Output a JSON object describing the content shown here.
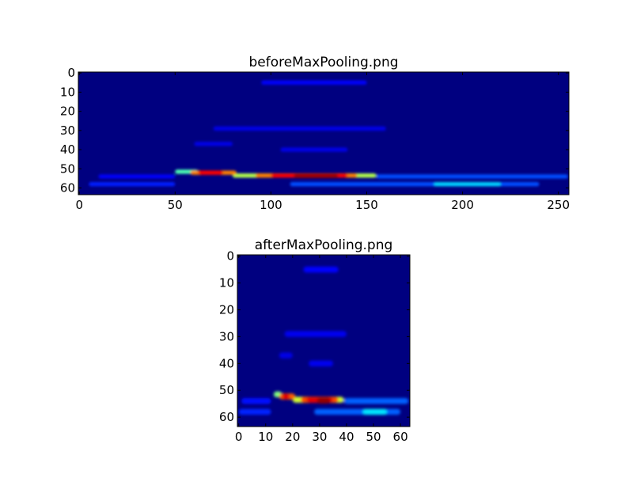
{
  "chart_data": [
    {
      "type": "heatmap",
      "title": "beforeMaxPooling.png",
      "colormap": "jet",
      "xlim": [
        -0.5,
        255.5
      ],
      "ylim": [
        63.5,
        -0.5
      ],
      "xticks": [
        0,
        50,
        100,
        150,
        200,
        250
      ],
      "yticks": [
        0,
        10,
        20,
        30,
        40,
        50,
        60
      ],
      "background_value": 0.0,
      "features": [
        {
          "x0": 10,
          "x1": 50,
          "y": 54,
          "value": 0.12
        },
        {
          "x0": 5,
          "x1": 50,
          "y": 58,
          "value": 0.15
        },
        {
          "x0": 95,
          "x1": 150,
          "y": 5,
          "value": 0.12
        },
        {
          "x0": 70,
          "x1": 160,
          "y": 29,
          "value": 0.1
        },
        {
          "x0": 60,
          "x1": 80,
          "y": 37,
          "value": 0.1
        },
        {
          "x0": 105,
          "x1": 140,
          "y": 40,
          "value": 0.1
        },
        {
          "x0": 155,
          "x1": 255,
          "y": 54,
          "value": 0.2
        },
        {
          "x0": 110,
          "x1": 240,
          "y": 58,
          "value": 0.2
        },
        {
          "x0": 185,
          "x1": 220,
          "y": 58,
          "value": 0.33
        },
        {
          "x0": 50,
          "x1": 62,
          "y": 51.5,
          "value": 0.45
        },
        {
          "x0": 80,
          "x1": 155,
          "y": 53.5,
          "value": 0.55
        },
        {
          "x0": 58,
          "x1": 82,
          "y": 52,
          "value": 0.75
        },
        {
          "x0": 92,
          "x1": 145,
          "y": 53.5,
          "value": 0.75
        },
        {
          "x0": 62,
          "x1": 75,
          "y": 52,
          "value": 0.88
        },
        {
          "x0": 100,
          "x1": 140,
          "y": 53.5,
          "value": 0.88
        },
        {
          "x0": 112,
          "x1": 135,
          "y": 53.7,
          "value": 0.97
        }
      ]
    },
    {
      "type": "heatmap",
      "title": "afterMaxPooling.png",
      "colormap": "jet",
      "xlim": [
        -0.5,
        63.5
      ],
      "ylim": [
        63.5,
        -0.5
      ],
      "xticks": [
        0,
        10,
        20,
        30,
        40,
        50,
        60
      ],
      "yticks": [
        0,
        10,
        20,
        30,
        40,
        50,
        60
      ],
      "background_value": 0.0,
      "features": [
        {
          "x0": 1,
          "x1": 12,
          "y": 54,
          "value": 0.14
        },
        {
          "x0": 0,
          "x1": 12,
          "y": 58,
          "value": 0.16
        },
        {
          "x0": 24,
          "x1": 37,
          "y": 5,
          "value": 0.13
        },
        {
          "x0": 17,
          "x1": 40,
          "y": 29,
          "value": 0.11
        },
        {
          "x0": 15,
          "x1": 20,
          "y": 37,
          "value": 0.1
        },
        {
          "x0": 26,
          "x1": 35,
          "y": 40,
          "value": 0.11
        },
        {
          "x0": 39,
          "x1": 63,
          "y": 54,
          "value": 0.22
        },
        {
          "x0": 28,
          "x1": 60,
          "y": 58,
          "value": 0.22
        },
        {
          "x0": 46,
          "x1": 55,
          "y": 58,
          "value": 0.35
        },
        {
          "x0": 13,
          "x1": 16,
          "y": 51.5,
          "value": 0.5
        },
        {
          "x0": 20,
          "x1": 39,
          "y": 53.5,
          "value": 0.58
        },
        {
          "x0": 15,
          "x1": 21,
          "y": 52.3,
          "value": 0.78
        },
        {
          "x0": 23,
          "x1": 37,
          "y": 53.5,
          "value": 0.8
        },
        {
          "x0": 16,
          "x1": 19,
          "y": 52.3,
          "value": 0.9
        },
        {
          "x0": 25,
          "x1": 35,
          "y": 53.5,
          "value": 0.9
        },
        {
          "x0": 29,
          "x1": 34,
          "y": 53.8,
          "value": 0.98
        }
      ]
    }
  ]
}
